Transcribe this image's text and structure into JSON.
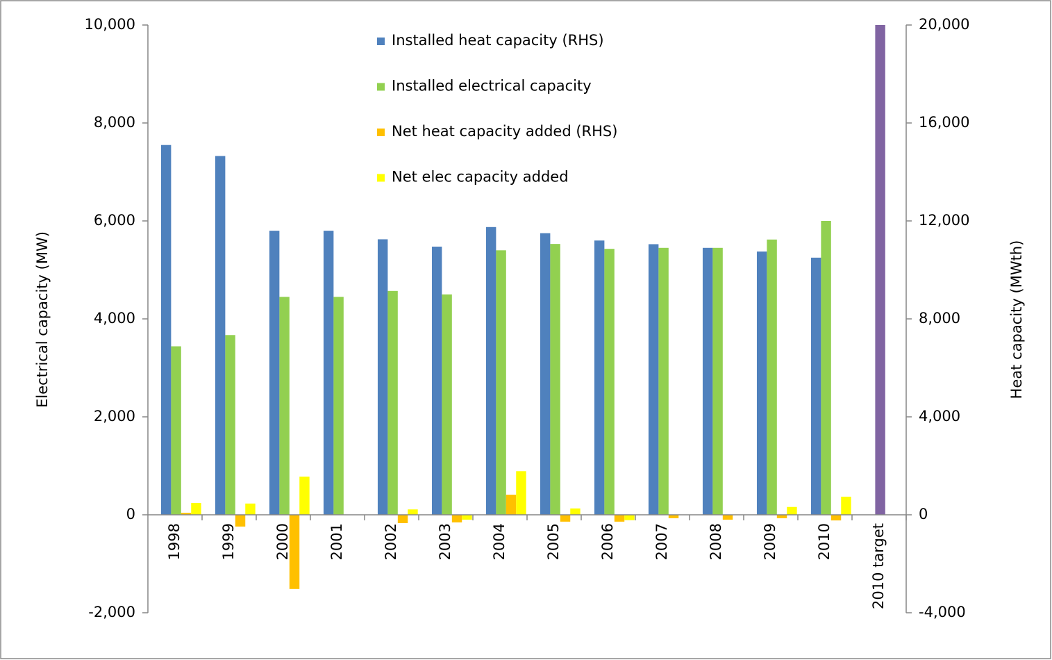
{
  "chart_data": {
    "type": "bar",
    "categories": [
      "1998",
      "1999",
      "2000",
      "2001",
      "2002",
      "2003",
      "2004",
      "2005",
      "2006",
      "2007",
      "2008",
      "2009",
      "2010",
      "2010 target"
    ],
    "y_label": "Electrical capacity (MW)",
    "y2_label": "Heat capacity (MWth)",
    "ylim": [
      -2000,
      10000
    ],
    "yticks": [
      {
        "value": -2000,
        "label": "-2,000"
      },
      0,
      {
        "value": 2000,
        "label": "2,000"
      },
      {
        "value": 4000,
        "label": "4,000"
      },
      {
        "value": 6000,
        "label": "6,000"
      },
      {
        "value": 8000,
        "label": "8,000"
      },
      {
        "value": 10000,
        "label": "10,000"
      }
    ],
    "y2lim": [
      -4000,
      20000
    ],
    "y2ticks": [
      {
        "value": -4000,
        "label": "-4,000"
      },
      0,
      {
        "value": 4000,
        "label": "4,000"
      },
      {
        "value": 8000,
        "label": "8,000"
      },
      {
        "value": 12000,
        "label": "12,000"
      },
      {
        "value": 16000,
        "label": "16,000"
      },
      {
        "value": 20000,
        "label": "20,000"
      }
    ],
    "grid": false,
    "series": [
      {
        "name": "Installed heat capacity (RHS)",
        "color": "#4f81bd",
        "axis": "y2",
        "values": [
          15100,
          14650,
          11600,
          11600,
          11250,
          10950,
          11750,
          11500,
          11200,
          11050,
          10900,
          10750,
          10500,
          null
        ]
      },
      {
        "name": "Installed electrical capacity",
        "color": "#92d050",
        "values": [
          3440,
          3670,
          4450,
          4450,
          4570,
          4500,
          5400,
          5530,
          5430,
          5450,
          5450,
          5620,
          6000,
          null
        ]
      },
      {
        "name": "Net heat capacity added (RHS)",
        "color": "#ffc000",
        "axis": "y2",
        "values": [
          80,
          -480,
          -3030,
          0,
          -340,
          -310,
          820,
          -280,
          -280,
          -140,
          -200,
          -140,
          -230,
          null
        ]
      },
      {
        "name": "Net elec capacity added",
        "color": "#ffff00",
        "values": [
          240,
          230,
          780,
          0,
          110,
          -100,
          890,
          130,
          -110,
          0,
          0,
          160,
          370,
          null
        ]
      },
      {
        "color": "#8064a2",
        "values": [
          null,
          null,
          null,
          null,
          null,
          null,
          null,
          null,
          null,
          null,
          null,
          null,
          null,
          10000
        ]
      }
    ]
  }
}
